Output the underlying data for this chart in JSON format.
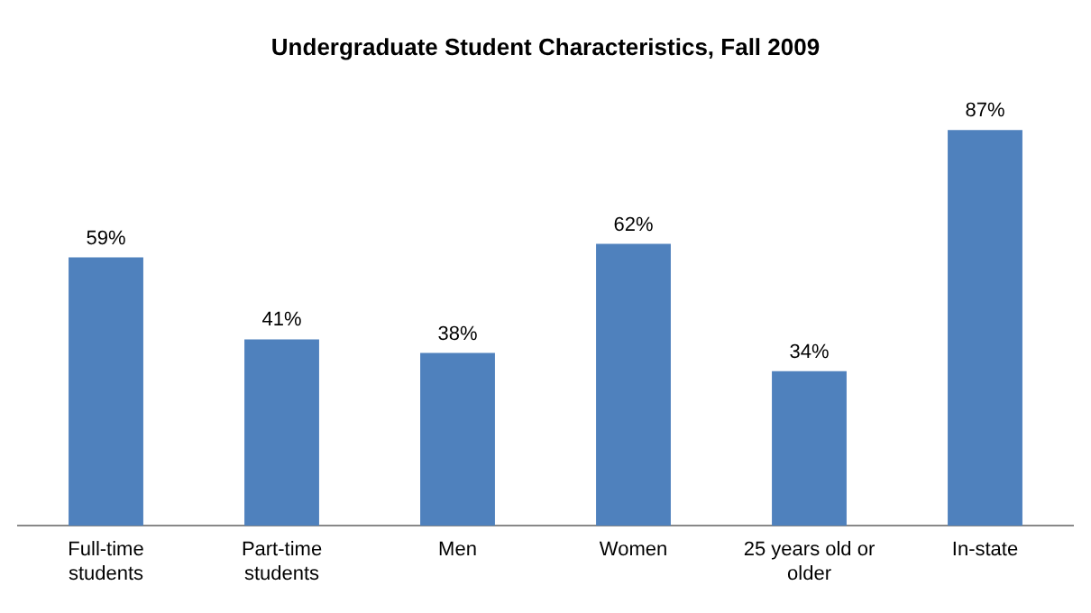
{
  "chart_data": {
    "type": "bar",
    "title": "Undergraduate Student Characteristics, Fall 2009",
    "categories": [
      "Full-time students",
      "Part-time students",
      "Men",
      "Women",
      "25 years old or older",
      "In-state"
    ],
    "values": [
      59,
      41,
      38,
      62,
      34,
      87
    ],
    "value_labels": [
      "59%",
      "41%",
      "38%",
      "62%",
      "34%",
      "87%"
    ],
    "color": "#4f81bd",
    "tick_labels": "x"
  }
}
